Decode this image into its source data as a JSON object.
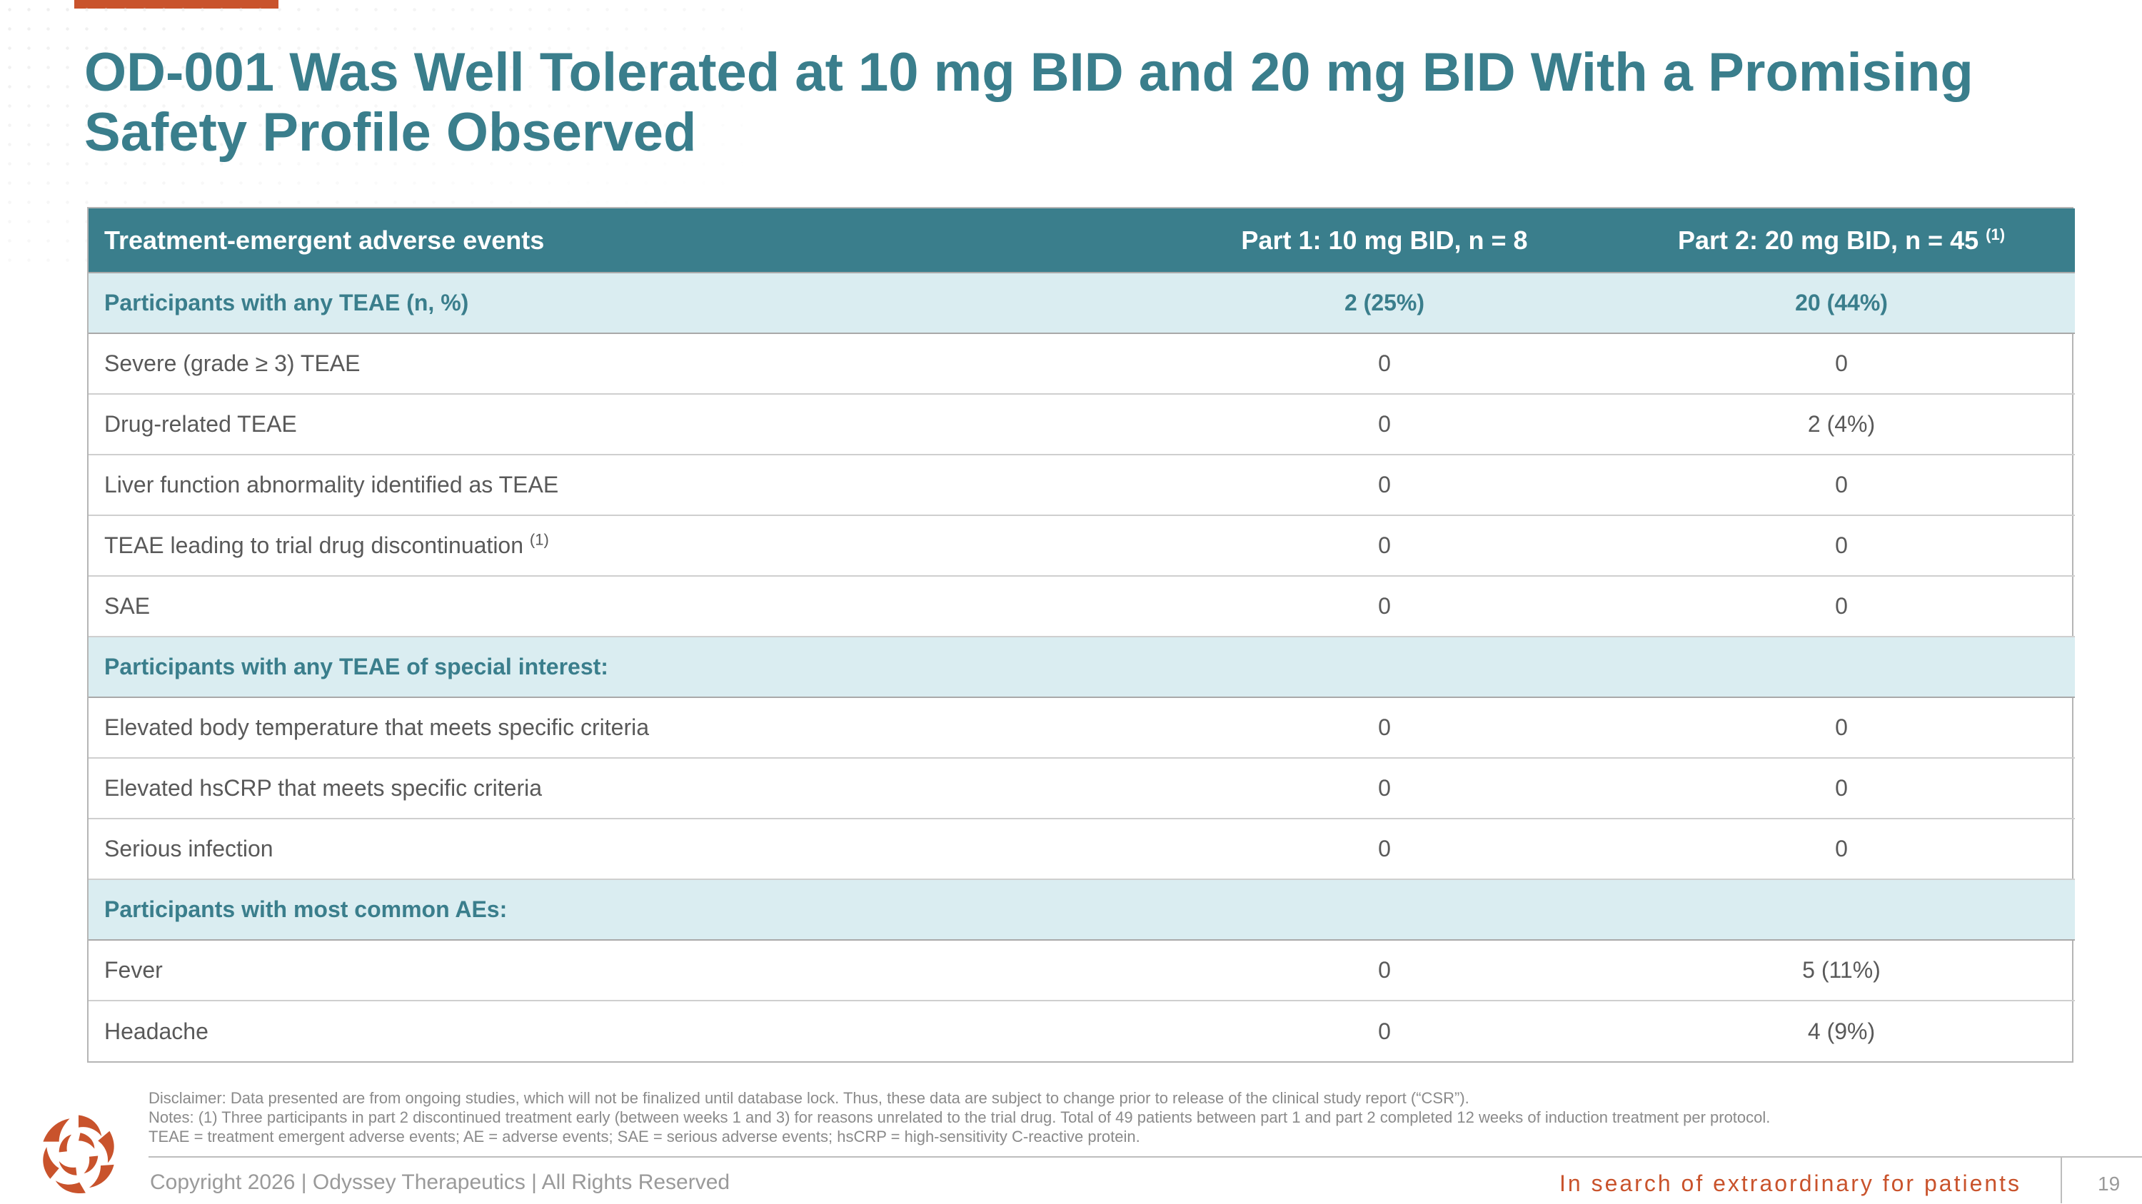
{
  "title": "OD-001 Was Well Tolerated at 10 mg BID and 20 mg BID With a Promising Safety Profile Observed",
  "table": {
    "headers": {
      "col1": "Treatment-emergent adverse events",
      "col2": "Part 1: 10 mg BID, n = 8",
      "col3": "Part 2: 20 mg BID, n = 45",
      "col3_note": "(1)"
    },
    "rows": [
      {
        "label": "Participants with any TEAE (n, %)",
        "part1": "2 (25%)",
        "part2": "20 (44%)"
      },
      {
        "label": "Severe (grade ≥ 3) TEAE",
        "part1": "0",
        "part2": "0"
      },
      {
        "label": "Drug-related TEAE",
        "part1": "0",
        "part2": "2 (4%)"
      },
      {
        "label": "Liver function abnormality identified as TEAE",
        "part1": "0",
        "part2": "0"
      },
      {
        "label": "TEAE leading to trial drug discontinuation",
        "note": "(1)",
        "part1": "0",
        "part2": "0"
      },
      {
        "label": "SAE",
        "part1": "0",
        "part2": "0"
      },
      {
        "label": "Participants with any TEAE of special interest:"
      },
      {
        "label": "Elevated body temperature that meets specific criteria",
        "part1": "0",
        "part2": "0"
      },
      {
        "label": "Elevated hsCRP that meets specific criteria",
        "part1": "0",
        "part2": "0"
      },
      {
        "label": "Serious infection",
        "part1": "0",
        "part2": "0"
      },
      {
        "label": "Participants with most common AEs:"
      },
      {
        "label": "Fever",
        "part1": "0",
        "part2": "5 (11%)"
      },
      {
        "label": "Headache",
        "part1": "0",
        "part2": "4 (9%)"
      }
    ]
  },
  "notes": {
    "disclaimer": "Disclaimer: Data presented are from ongoing studies, which will not be finalized until database lock. Thus, these data are subject to change prior to release of the clinical study report (“CSR”).",
    "note1": "Notes: (1) Three participants in part 2 discontinued treatment early (between weeks 1 and 3) for reasons unrelated to the trial drug. Total of 49 patients between part 1 and part 2 completed 12 weeks of induction treatment per protocol.",
    "abbreviations": "TEAE = treatment emergent adverse events; AE = adverse events; SAE = serious adverse events; hsCRP = high-sensitivity C-reactive protein."
  },
  "footer": {
    "copyright": "Copyright 2026  |  Odyssey Therapeutics  |  All Rights Reserved",
    "tagline": "In search of extraordinary for patients",
    "page_number": "19"
  },
  "colors": {
    "teal": "#3a7e8c",
    "section_bg": "#daedf1",
    "accent": "#c9532c"
  },
  "icons": {
    "logo": "odyssey-swirl-logo-icon"
  }
}
